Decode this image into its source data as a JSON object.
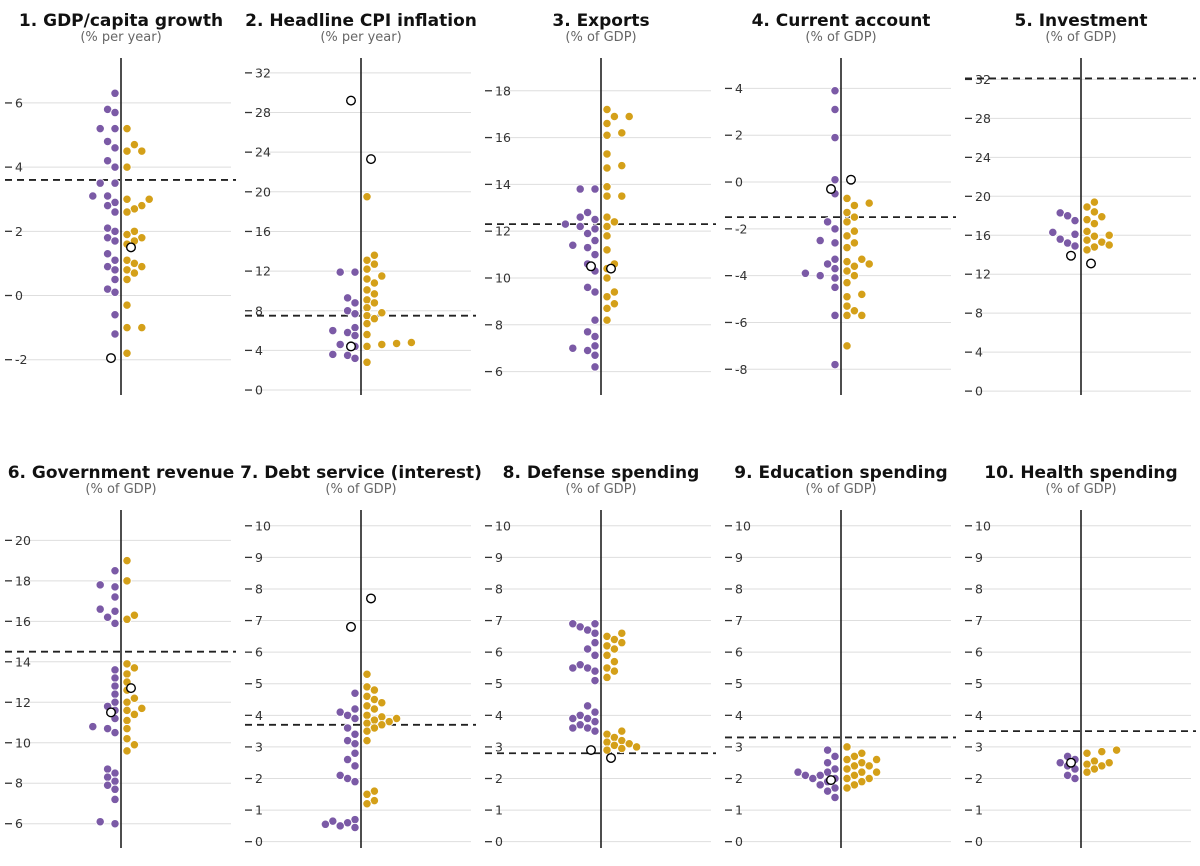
{
  "colors": {
    "group_a": "#7b5aa6",
    "group_b": "#d4a019",
    "marker": "#000000",
    "reference": "#222222",
    "grid": "#dedede"
  },
  "chart_data": [
    {
      "type": "scatter",
      "title": "1. GDP/capita growth",
      "subtitle": "(% per year)",
      "ylim": [
        -3.1,
        7.4
      ],
      "ticks": [
        -2,
        0,
        2,
        4,
        6
      ],
      "tick_labels": [
        "-2",
        "0",
        "2",
        "4",
        "6"
      ],
      "reference": 3.6,
      "series": [
        {
          "values": [
            6.3,
            5.8,
            5.7,
            5.2,
            5.2,
            4.8,
            4.6,
            4.2,
            4.0,
            3.5,
            3.5,
            3.1,
            3.1,
            2.9,
            2.8,
            2.6,
            2.1,
            2.0,
            1.8,
            1.7,
            1.3,
            1.1,
            0.9,
            0.8,
            0.5,
            0.2,
            0.1,
            -0.6,
            -1.2
          ]
        },
        {
          "values": [
            5.2,
            4.7,
            4.5,
            4.5,
            4.0,
            3.0,
            3.0,
            2.8,
            2.7,
            2.6,
            2.0,
            1.9,
            1.8,
            1.7,
            1.6,
            1.1,
            1.0,
            0.9,
            0.8,
            0.7,
            0.5,
            -0.3,
            -1.0,
            -1.0,
            -1.8
          ]
        }
      ],
      "markers": [
        {
          "side": "right",
          "value": 1.5
        },
        {
          "side": "left",
          "value": -1.95
        }
      ]
    },
    {
      "type": "scatter",
      "title": "2. Headline CPI inflation",
      "subtitle": "(% per year)",
      "ylim": [
        -0.5,
        33.5
      ],
      "ticks": [
        0,
        4,
        8,
        12,
        16,
        20,
        24,
        28,
        32
      ],
      "tick_labels": [
        "0",
        "4",
        "8",
        "12",
        "16",
        "20",
        "24",
        "28",
        "32"
      ],
      "reference": 7.5,
      "series": [
        {
          "values": [
            11.9,
            11.9,
            9.3,
            8.8,
            8.0,
            7.7,
            6.3,
            6.0,
            5.8,
            5.5,
            4.6,
            4.4,
            3.6,
            3.5,
            3.2
          ]
        },
        {
          "values": [
            19.5,
            13.6,
            13.1,
            12.7,
            12.2,
            11.5,
            11.2,
            10.8,
            10.1,
            9.7,
            9.1,
            8.8,
            8.3,
            7.8,
            7.5,
            7.2,
            6.7,
            5.6,
            4.8,
            4.7,
            4.6,
            4.4,
            2.8
          ]
        }
      ],
      "markers": [
        {
          "side": "left",
          "value": 29.2
        },
        {
          "side": "right",
          "value": 23.3
        },
        {
          "side": "left",
          "value": 4.4
        }
      ]
    },
    {
      "type": "scatter",
      "title": "3. Exports",
      "subtitle": "(% of GDP)",
      "ylim": [
        5.0,
        19.4
      ],
      "ticks": [
        6,
        8,
        10,
        12,
        14,
        16,
        18
      ],
      "tick_labels": [
        "6",
        "8",
        "10",
        "12",
        "14",
        "16",
        "18"
      ],
      "reference": 12.3,
      "series": [
        {
          "values": [
            13.8,
            13.8,
            12.8,
            12.6,
            12.5,
            12.3,
            12.2,
            12.1,
            11.9,
            11.6,
            11.4,
            11.3,
            11.0,
            10.6,
            10.3,
            9.6,
            9.4,
            8.2,
            7.7,
            7.5,
            7.1,
            7.0,
            6.9,
            6.7,
            6.2
          ]
        },
        {
          "values": [
            17.2,
            16.9,
            16.9,
            16.6,
            16.2,
            16.1,
            15.3,
            14.8,
            14.7,
            13.9,
            13.5,
            13.5,
            12.6,
            12.4,
            12.2,
            11.8,
            11.2,
            10.6,
            10.4,
            10.0,
            9.4,
            9.2,
            8.9,
            8.7,
            8.2
          ]
        }
      ],
      "markers": [
        {
          "side": "left",
          "value": 10.5
        },
        {
          "side": "right",
          "value": 10.4
        }
      ]
    },
    {
      "type": "scatter",
      "title": "4. Current account",
      "subtitle": "(% of GDP)",
      "ylim": [
        -9.1,
        5.3
      ],
      "ticks": [
        -8,
        -6,
        -4,
        -2,
        0,
        2,
        4
      ],
      "tick_labels": [
        "-8",
        "-6",
        "-4",
        "-2",
        "0",
        "2",
        "4"
      ],
      "reference": -1.5,
      "series": [
        {
          "values": [
            3.9,
            3.1,
            1.9,
            0.1,
            -0.5,
            -1.7,
            -2.0,
            -2.5,
            -2.6,
            -3.3,
            -3.5,
            -3.7,
            -3.9,
            -4.0,
            -4.1,
            -4.5,
            -5.7,
            -7.8
          ]
        },
        {
          "values": [
            -0.7,
            -0.9,
            -1.0,
            -1.3,
            -1.5,
            -1.7,
            -2.1,
            -2.3,
            -2.6,
            -2.8,
            -3.3,
            -3.4,
            -3.5,
            -3.6,
            -3.8,
            -4.0,
            -4.3,
            -4.8,
            -4.9,
            -5.3,
            -5.5,
            -5.7,
            -5.7,
            -7.0
          ]
        }
      ],
      "markers": [
        {
          "side": "left",
          "value": -0.3
        },
        {
          "side": "right",
          "value": 0.1
        }
      ]
    },
    {
      "type": "scatter",
      "title": "5. Investment",
      "subtitle": "(% of GDP)",
      "ylim": [
        -0.4,
        34.2
      ],
      "ticks": [
        0,
        4,
        8,
        12,
        16,
        20,
        24,
        28,
        32
      ],
      "tick_labels": [
        "0",
        "4",
        "8",
        "12",
        "16",
        "20",
        "24",
        "28",
        "32"
      ],
      "reference": 32.1,
      "series": [
        {
          "values": [
            18.3,
            18.0,
            17.5,
            16.3,
            16.1,
            15.6,
            15.2,
            14.9
          ]
        },
        {
          "values": [
            19.4,
            18.9,
            18.4,
            17.9,
            17.6,
            17.2,
            16.4,
            16.0,
            15.9,
            15.5,
            15.3,
            15.0,
            14.8,
            14.5
          ]
        }
      ],
      "markers": [
        {
          "side": "left",
          "value": 13.9
        },
        {
          "side": "right",
          "value": 13.1
        }
      ]
    },
    {
      "type": "scatter",
      "title": "6. Government revenue",
      "subtitle": "(% of GDP)",
      "ylim": [
        4.8,
        21.5
      ],
      "ticks": [
        6,
        8,
        10,
        12,
        14,
        16,
        18,
        20
      ],
      "tick_labels": [
        "6",
        "8",
        "10",
        "12",
        "14",
        "16",
        "18",
        "20"
      ],
      "reference": 14.5,
      "series": [
        {
          "values": [
            18.5,
            17.8,
            17.7,
            17.2,
            16.6,
            16.5,
            16.2,
            15.9,
            13.6,
            13.2,
            12.8,
            12.4,
            12.0,
            11.8,
            11.6,
            11.2,
            10.8,
            10.7,
            10.5,
            8.7,
            8.5,
            8.3,
            8.1,
            7.9,
            7.7,
            7.2,
            6.1,
            6.0
          ]
        },
        {
          "values": [
            19.0,
            18.0,
            16.3,
            16.1,
            13.9,
            13.7,
            13.4,
            13.0,
            12.6,
            12.2,
            12.0,
            11.7,
            11.6,
            11.4,
            11.1,
            10.7,
            10.2,
            9.9,
            9.6
          ]
        }
      ],
      "markers": [
        {
          "side": "left",
          "value": 11.5
        },
        {
          "side": "right",
          "value": 12.7
        }
      ]
    },
    {
      "type": "scatter",
      "title": "7. Debt service (interest)",
      "subtitle": "(% of GDP)",
      "ylim": [
        -0.2,
        10.5
      ],
      "ticks": [
        0,
        1,
        2,
        3,
        4,
        5,
        6,
        7,
        8,
        9,
        10
      ],
      "tick_labels": [
        "0",
        "1",
        "2",
        "3",
        "4",
        "5",
        "6",
        "7",
        "8",
        "9",
        "10"
      ],
      "reference": 3.7,
      "series": [
        {
          "values": [
            4.7,
            4.2,
            4.1,
            4.0,
            3.9,
            3.6,
            3.4,
            3.2,
            3.1,
            2.8,
            2.6,
            2.4,
            2.1,
            2.0,
            1.9,
            0.7,
            0.65,
            0.6,
            0.55,
            0.5,
            0.45
          ]
        },
        {
          "values": [
            5.3,
            4.9,
            4.8,
            4.6,
            4.5,
            4.4,
            4.3,
            4.2,
            4.0,
            3.95,
            3.9,
            3.85,
            3.8,
            3.75,
            3.7,
            3.6,
            3.5,
            3.2,
            1.6,
            1.5,
            1.3,
            1.2
          ]
        }
      ],
      "markers": [
        {
          "side": "left",
          "value": 6.8
        },
        {
          "side": "right",
          "value": 7.7
        }
      ]
    },
    {
      "type": "scatter",
      "title": "8. Defense spending",
      "subtitle": "(% of GDP)",
      "ylim": [
        -0.2,
        10.5
      ],
      "ticks": [
        0,
        1,
        2,
        3,
        4,
        5,
        6,
        7,
        8,
        9,
        10
      ],
      "tick_labels": [
        "0",
        "1",
        "2",
        "3",
        "4",
        "5",
        "6",
        "7",
        "8",
        "9",
        "10"
      ],
      "reference": 2.8,
      "series": [
        {
          "values": [
            6.9,
            6.9,
            6.8,
            6.7,
            6.6,
            6.3,
            6.1,
            5.9,
            5.6,
            5.5,
            5.5,
            5.4,
            5.1,
            4.3,
            4.1,
            4.0,
            3.9,
            3.9,
            3.8,
            3.7,
            3.6,
            3.6,
            3.5
          ]
        },
        {
          "values": [
            6.6,
            6.5,
            6.4,
            6.3,
            6.2,
            6.1,
            5.9,
            5.7,
            5.5,
            5.4,
            5.2,
            3.5,
            3.4,
            3.3,
            3.2,
            3.15,
            3.1,
            3.05,
            3.0,
            2.95,
            2.9
          ]
        }
      ],
      "markers": [
        {
          "side": "left",
          "value": 2.9
        },
        {
          "side": "right",
          "value": 2.65
        }
      ]
    },
    {
      "type": "scatter",
      "title": "9. Education spending",
      "subtitle": "(% of GDP)",
      "ylim": [
        -0.2,
        10.5
      ],
      "ticks": [
        0,
        1,
        2,
        3,
        4,
        5,
        6,
        7,
        8,
        9,
        10
      ],
      "tick_labels": [
        "0",
        "1",
        "2",
        "3",
        "4",
        "5",
        "6",
        "7",
        "8",
        "9",
        "10"
      ],
      "reference": 3.3,
      "series": [
        {
          "values": [
            2.9,
            2.7,
            2.5,
            2.3,
            2.2,
            2.2,
            2.1,
            2.1,
            2.0,
            2.0,
            1.9,
            1.8,
            1.7,
            1.6,
            1.4
          ]
        },
        {
          "values": [
            3.0,
            2.8,
            2.7,
            2.6,
            2.6,
            2.5,
            2.4,
            2.4,
            2.3,
            2.2,
            2.2,
            2.1,
            2.0,
            2.0,
            1.9,
            1.8,
            1.7
          ]
        }
      ],
      "markers": [
        {
          "side": "left",
          "value": 1.95
        }
      ]
    },
    {
      "type": "scatter",
      "title": "10. Health spending",
      "subtitle": "(% of GDP)",
      "ylim": [
        -0.2,
        10.5
      ],
      "ticks": [
        0,
        1,
        2,
        3,
        4,
        5,
        6,
        7,
        8,
        9,
        10
      ],
      "tick_labels": [
        "0",
        "1",
        "2",
        "3",
        "4",
        "5",
        "6",
        "7",
        "8",
        "9",
        "10"
      ],
      "reference": 3.5,
      "series": [
        {
          "values": [
            2.7,
            2.6,
            2.5,
            2.4,
            2.3,
            2.1,
            2.0
          ]
        },
        {
          "values": [
            2.9,
            2.85,
            2.8,
            2.55,
            2.5,
            2.45,
            2.4,
            2.3,
            2.2
          ]
        }
      ],
      "markers": [
        {
          "side": "left",
          "value": 2.5
        }
      ]
    }
  ]
}
